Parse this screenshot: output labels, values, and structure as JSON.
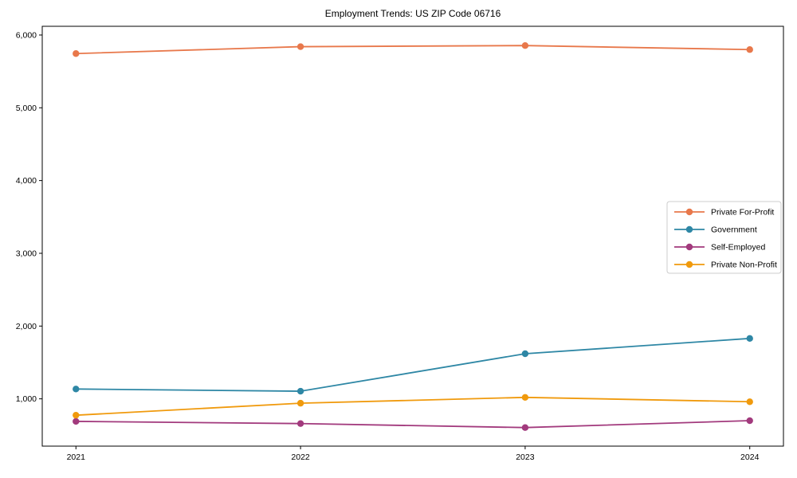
{
  "chart_data": {
    "type": "line",
    "title": "Employment Trends: US ZIP Code 06716",
    "xlabel": "",
    "ylabel": "",
    "x": [
      2021,
      2022,
      2023,
      2024
    ],
    "xlim": [
      2020.85,
      2024.15
    ],
    "ylim": [
      350,
      6120
    ],
    "yticks": [
      1000,
      2000,
      3000,
      4000,
      5000,
      6000
    ],
    "grid": false,
    "legend_position": "center-right",
    "background_color": "#ffffff",
    "axis_color": "#000000",
    "legend_border_color": "#cccccc",
    "series": [
      {
        "id": "private-for-profit",
        "name": "Private For-Profit",
        "color": "#e8784b",
        "values": [
          5745,
          5840,
          5855,
          5800
        ]
      },
      {
        "id": "government",
        "name": "Government",
        "color": "#2e87a5",
        "values": [
          1135,
          1105,
          1620,
          1830
        ]
      },
      {
        "id": "self-employed",
        "name": "Self-Employed",
        "color": "#a23a7d",
        "values": [
          690,
          660,
          605,
          700
        ]
      },
      {
        "id": "private-non-profit",
        "name": "Private Non-Profit",
        "color": "#f09a0d",
        "values": [
          775,
          940,
          1020,
          960
        ]
      }
    ]
  }
}
